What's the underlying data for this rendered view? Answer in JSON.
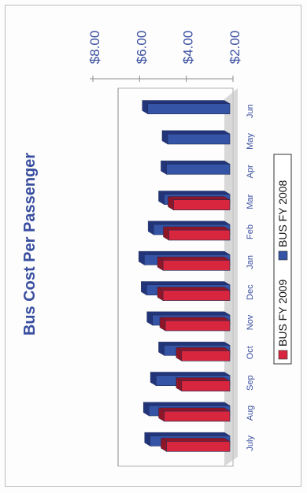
{
  "chart_data": {
    "type": "bar",
    "orientation": "horizontal",
    "rendering": "3d",
    "title": "Bus Cost Per Passenger",
    "categories": [
      "July",
      "Aug",
      "Sep",
      "Oct",
      "Nov",
      "Dec",
      "Jan",
      "Feb",
      "Mar",
      "Apr",
      "May",
      "Jun"
    ],
    "series": [
      {
        "name": "BUS FY 2009",
        "color": "#d7263d",
        "values": [
          5.2,
          5.3,
          4.55,
          4.55,
          5.25,
          5.35,
          5.35,
          5.1,
          4.9,
          null,
          null,
          null
        ]
      },
      {
        "name": "BUS FY 2008",
        "color": "#3554a6",
        "values": [
          5.55,
          5.6,
          5.3,
          4.95,
          5.45,
          5.7,
          5.8,
          5.4,
          4.95,
          4.85,
          4.8,
          5.65
        ]
      }
    ],
    "value_axis": {
      "ticks": [
        "$8.00",
        "$6.00",
        "$4.00",
        "$2.00"
      ],
      "tick_values": [
        8,
        6,
        4,
        2
      ],
      "baseline": 2
    },
    "legend": {
      "placement": "right",
      "entries": [
        "BUS FY 2009",
        "BUS FY 2008"
      ]
    },
    "colors": {
      "series_2009": "#d7263d",
      "series_2008": "#3554a6",
      "floor": "#c8c8c8",
      "text": "#3a4fa0"
    }
  }
}
